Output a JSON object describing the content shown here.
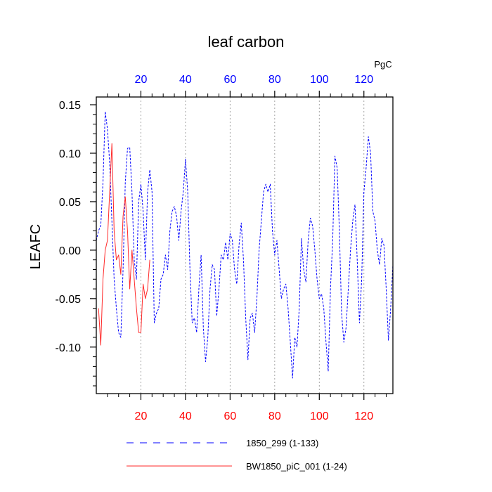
{
  "chart_data": {
    "type": "line",
    "title": "leaf carbon",
    "units": "PgC",
    "ylabel": "LEAFC",
    "xlabel": "",
    "xlim": [
      0,
      133
    ],
    "ylim": [
      -0.148,
      0.158
    ],
    "grid": "vertical dotted lines at x ticks",
    "x_ticks": [
      "20",
      "40",
      "60",
      "80",
      "100",
      "120"
    ],
    "y_ticks": [
      "0.15",
      "0.10",
      "0.05",
      "0.00",
      "-0.05",
      "-0.10"
    ],
    "legend_position": "bottom",
    "series": [
      {
        "name": "1850_299 (1-133)",
        "color": "#0000ff",
        "dash": "dashed",
        "x": [
          0,
          1,
          2,
          3,
          4,
          5,
          6,
          7,
          8,
          9,
          10,
          11,
          12,
          13,
          14,
          15,
          16,
          17,
          18,
          19,
          20,
          21,
          22,
          23,
          24,
          25,
          26,
          27,
          28,
          29,
          30,
          31,
          32,
          33,
          34,
          35,
          36,
          37,
          38,
          39,
          40,
          41,
          42,
          43,
          44,
          45,
          46,
          47,
          48,
          49,
          50,
          51,
          52,
          53,
          54,
          55,
          56,
          57,
          58,
          59,
          60,
          61,
          62,
          63,
          64,
          65,
          66,
          67,
          68,
          69,
          70,
          71,
          72,
          73,
          74,
          75,
          76,
          77,
          78,
          79,
          80,
          81,
          82,
          83,
          84,
          85,
          86,
          87,
          88,
          89,
          90,
          91,
          92,
          93,
          94,
          95,
          96,
          97,
          98,
          99,
          100,
          101,
          102,
          103,
          104,
          105,
          106,
          107,
          108,
          109,
          110,
          111,
          112,
          113,
          114,
          115,
          116,
          117,
          118,
          119,
          120,
          121,
          122,
          123,
          124,
          125,
          126,
          127,
          128,
          129,
          130,
          131,
          132,
          133
        ],
        "y": [
          0.01,
          0.02,
          0.025,
          0.07,
          0.143,
          0.125,
          0.09,
          0.03,
          -0.03,
          -0.06,
          -0.085,
          -0.09,
          -0.02,
          0.07,
          0.105,
          0.106,
          0.06,
          -0.01,
          -0.03,
          0.05,
          0.068,
          0.04,
          -0.01,
          0.06,
          0.083,
          0.06,
          -0.075,
          -0.065,
          -0.06,
          -0.03,
          -0.025,
          -0.005,
          -0.02,
          0.02,
          0.04,
          0.045,
          0.035,
          0.01,
          0.04,
          0.06,
          0.094,
          0.06,
          -0.02,
          -0.075,
          -0.07,
          -0.085,
          -0.04,
          -0.005,
          -0.08,
          -0.115,
          -0.09,
          -0.04,
          -0.015,
          -0.02,
          -0.068,
          -0.04,
          -0.005,
          -0.01,
          0.008,
          -0.01,
          0.017,
          0.01,
          -0.02,
          -0.035,
          0.005,
          0.028,
          -0.01,
          -0.07,
          -0.113,
          -0.07,
          -0.065,
          -0.085,
          -0.05,
          0.0,
          0.03,
          0.06,
          0.068,
          0.06,
          0.068,
          0.02,
          -0.005,
          0.01,
          -0.02,
          -0.05,
          -0.04,
          -0.035,
          -0.06,
          -0.095,
          -0.132,
          -0.09,
          -0.1,
          -0.06,
          0.012,
          -0.02,
          -0.033,
          0.01,
          0.033,
          0.025,
          0.0,
          -0.03,
          -0.05,
          -0.045,
          -0.06,
          -0.095,
          -0.125,
          -0.04,
          0.01,
          0.097,
          0.085,
          0.02,
          -0.065,
          -0.095,
          -0.08,
          -0.04,
          0.0,
          0.03,
          0.047,
          -0.01,
          -0.075,
          -0.03,
          0.06,
          0.085,
          0.117,
          0.1,
          0.04,
          0.03,
          0.0,
          -0.015,
          0.012,
          0.005,
          -0.04,
          -0.093,
          -0.06,
          -0.015
        ]
      },
      {
        "name": "BW1850_piC_001 (1-24)",
        "color": "#ff2a2a",
        "dash": "solid",
        "x": [
          1,
          2,
          3,
          4,
          5,
          6,
          7,
          8,
          9,
          10,
          11,
          12,
          13,
          14,
          15,
          16,
          17,
          18,
          19,
          20,
          21,
          22,
          23,
          24
        ],
        "y": [
          -0.06,
          -0.098,
          -0.03,
          0.0,
          0.01,
          0.06,
          0.11,
          0.02,
          -0.01,
          -0.005,
          -0.025,
          0.035,
          0.055,
          0.02,
          -0.04,
          0.0,
          -0.03,
          -0.06,
          -0.085,
          -0.085,
          -0.035,
          -0.05,
          -0.04,
          -0.01
        ]
      }
    ]
  }
}
